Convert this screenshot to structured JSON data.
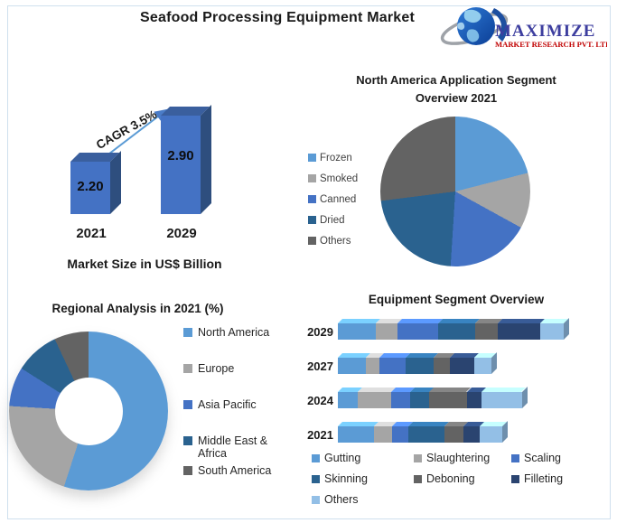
{
  "header": {
    "title": "Seafood Processing Equipment Market",
    "logo": {
      "name": "MAXIMIZE",
      "subtitle": "MARKET RESEARCH PVT. LTD.",
      "name_color": "#3d3e9f",
      "subtitle_color": "#c00000"
    }
  },
  "palette": {
    "light_blue": "#5B9BD5",
    "gray": "#A5A5A5",
    "medium_blue": "#4472C4",
    "dark_steel_blue": "#2A628F",
    "dark_gray": "#636363",
    "navy": "#2A4470",
    "pale_blue": "#93BFE6",
    "frame_border": "#cfe0ee",
    "arrow": "#5B9BD5"
  },
  "chart_data": [
    {
      "id": "growth",
      "type": "bar",
      "title": "Market Size in US$ Billion",
      "categories": [
        "2021",
        "2029"
      ],
      "values": [
        2.2,
        2.9
      ],
      "value_labels": [
        "2.20",
        "2.90"
      ],
      "annotation": "CAGR 3.5%",
      "bar_color": "#4472C4",
      "bar_top_color": "#3a5f9e",
      "bar_side_color": "#2e4e7e",
      "ylim": [
        1.4,
        2.9
      ],
      "grid": false,
      "axis_labels_hidden": true
    },
    {
      "id": "na_application",
      "type": "pie",
      "title": "North America Application Segment Overview 2021",
      "legend_position": "left",
      "slices": [
        {
          "label": "Frozen",
          "value": 21,
          "color": "#5B9BD5"
        },
        {
          "label": "Smoked",
          "value": 12,
          "color": "#A5A5A5"
        },
        {
          "label": "Canned",
          "value": 18,
          "color": "#4472C4"
        },
        {
          "label": "Dried",
          "value": 22,
          "color": "#2A628F"
        },
        {
          "label": "Others",
          "value": 27,
          "color": "#636363"
        }
      ]
    },
    {
      "id": "regional",
      "type": "pie",
      "subtype": "donut",
      "title": "Regional Analysis in 2021 (%)",
      "legend_position": "right",
      "slices": [
        {
          "label": "North America",
          "value": 55,
          "color": "#5B9BD5"
        },
        {
          "label": "Europe",
          "value": 21,
          "color": "#A5A5A5"
        },
        {
          "label": "Asia Pacific",
          "value": 8,
          "color": "#4472C4"
        },
        {
          "label": "Middle East & Africa",
          "value": 9,
          "color": "#2A628F"
        },
        {
          "label": "South America",
          "value": 7,
          "color": "#636363"
        }
      ]
    },
    {
      "id": "equipment",
      "type": "bar",
      "subtype": "stacked-horizontal-3d",
      "title": "Equipment Segment Overview",
      "legend_position": "bottom",
      "categories": [
        "2029",
        "2027",
        "2024",
        "2021"
      ],
      "series": [
        {
          "name": "Gutting",
          "color": "#5B9BD5",
          "values": [
            43,
            32,
            22,
            41
          ]
        },
        {
          "name": "Slaughtering",
          "color": "#A5A5A5",
          "values": [
            24,
            15,
            38,
            20
          ]
        },
        {
          "name": "Scaling",
          "color": "#4472C4",
          "values": [
            46,
            29,
            21,
            18
          ]
        },
        {
          "name": "Skinning",
          "color": "#2A628F",
          "values": [
            42,
            32,
            22,
            41
          ]
        },
        {
          "name": "Deboning",
          "color": "#636363",
          "values": [
            25,
            18,
            42,
            21
          ]
        },
        {
          "name": "Filleting",
          "color": "#2A4470",
          "values": [
            48,
            27,
            17,
            19
          ]
        },
        {
          "name": "Others",
          "color": "#93BFE6",
          "values": [
            26,
            20,
            45,
            25
          ]
        }
      ]
    }
  ]
}
